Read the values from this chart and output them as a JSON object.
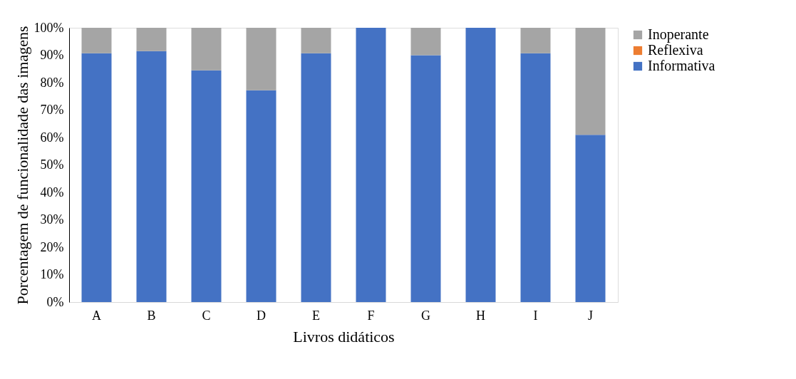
{
  "chart_data": {
    "type": "bar",
    "stacked": true,
    "xlabel": "Livros didáticos",
    "ylabel": "Porcentagem de funcionalidade das imagens",
    "categories": [
      "A",
      "B",
      "C",
      "D",
      "E",
      "F",
      "G",
      "H",
      "I",
      "J"
    ],
    "series": [
      {
        "name": "Informativa",
        "color": "#4472c4",
        "values": [
          90.7,
          91.5,
          84.5,
          77.2,
          90.7,
          100,
          90,
          100,
          90.7,
          61
        ]
      },
      {
        "name": "Reflexiva",
        "color": "#ed7d31",
        "values": [
          0,
          0,
          0,
          0,
          0,
          0,
          0,
          0,
          0,
          0
        ]
      },
      {
        "name": "Inoperante",
        "color": "#a5a5a5",
        "values": [
          9.3,
          8.5,
          15.5,
          22.8,
          9.3,
          0,
          10,
          0,
          9.3,
          39
        ]
      }
    ],
    "ylim": [
      0,
      100
    ],
    "yticks": [
      {
        "value": 0,
        "label": "0%"
      },
      {
        "value": 10,
        "label": "10%"
      },
      {
        "value": 20,
        "label": "20%"
      },
      {
        "value": 30,
        "label": "30%"
      },
      {
        "value": 40,
        "label": "40%"
      },
      {
        "value": 50,
        "label": "50%"
      },
      {
        "value": 60,
        "label": "60%"
      },
      {
        "value": 70,
        "label": "70%"
      },
      {
        "value": 80,
        "label": "80%"
      },
      {
        "value": 90,
        "label": "90%"
      },
      {
        "value": 100,
        "label": "100%"
      }
    ],
    "grid": false,
    "legend": "right"
  }
}
